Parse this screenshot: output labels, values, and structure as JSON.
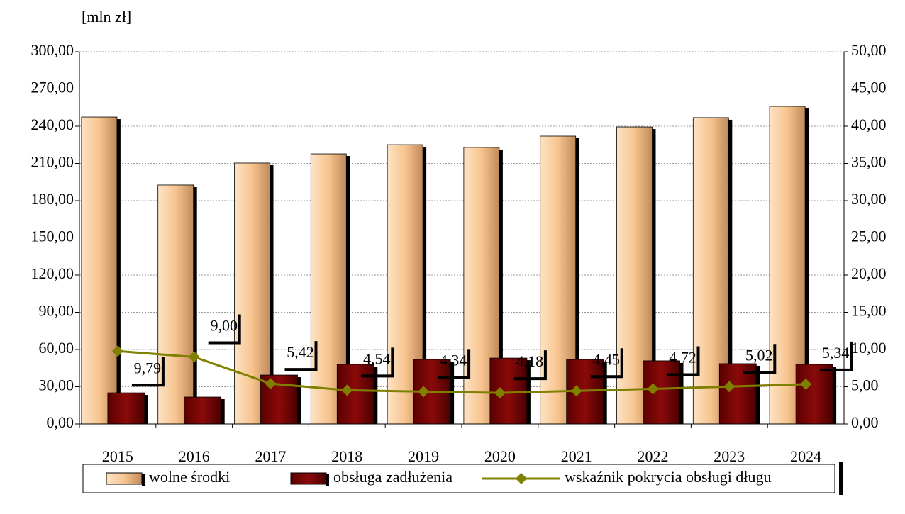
{
  "chart_data": {
    "type": "bar_line",
    "ylabel": "[mln zł]",
    "categories": [
      "2015",
      "2016",
      "2017",
      "2018",
      "2019",
      "2020",
      "2021",
      "2022",
      "2023",
      "2024"
    ],
    "series": [
      {
        "name": "wolne środki",
        "type": "bar",
        "color": "#f7c48f",
        "values": [
          247.4,
          192.6,
          210.3,
          217.7,
          225.1,
          222.9,
          232.0,
          239.4,
          246.9,
          256.0
        ]
      },
      {
        "name": "obsługa zadłużenia",
        "type": "bar",
        "color": "#7a0000",
        "values": [
          25.1,
          21.7,
          39.4,
          48.0,
          52.0,
          53.1,
          52.0,
          50.9,
          48.6,
          48.0
        ]
      },
      {
        "name": "wskaźnik pokrycia obsługi długu",
        "type": "line",
        "axis": "y2",
        "color": "#808000",
        "values": [
          9.79,
          9.0,
          5.42,
          4.54,
          4.34,
          4.18,
          4.45,
          4.72,
          5.02,
          5.34
        ],
        "value_labels": [
          "9,79",
          "9,00",
          "5,42",
          "4,54",
          "4,34",
          "4,18",
          "4,45",
          "4,72",
          "5,02",
          "5,34"
        ]
      }
    ],
    "ylim": [
      0,
      300
    ],
    "yticks": [
      {
        "value": 0,
        "label": "0,00"
      },
      {
        "value": 30,
        "label": "30,00"
      },
      {
        "value": 60,
        "label": "60,00"
      },
      {
        "value": 90,
        "label": "90,00"
      },
      {
        "value": 120,
        "label": "120,00"
      },
      {
        "value": 150,
        "label": "150,00"
      },
      {
        "value": 180,
        "label": "180,00"
      },
      {
        "value": 210,
        "label": "210,00"
      },
      {
        "value": 240,
        "label": "240,00"
      },
      {
        "value": 270,
        "label": "270,00"
      },
      {
        "value": 300,
        "label": "300,00"
      }
    ],
    "y2lim": [
      0,
      50
    ],
    "y2ticks": [
      {
        "value": 0,
        "label": "0,00"
      },
      {
        "value": 5,
        "label": "5,00"
      },
      {
        "value": 10,
        "label": "10,00"
      },
      {
        "value": 15,
        "label": "15,00"
      },
      {
        "value": 20,
        "label": "20,00"
      },
      {
        "value": 25,
        "label": "25,00"
      },
      {
        "value": 30,
        "label": "30,00"
      },
      {
        "value": 35,
        "label": "35,00"
      },
      {
        "value": 40,
        "label": "40,00"
      },
      {
        "value": 45,
        "label": "45,00"
      },
      {
        "value": 50,
        "label": "50,00"
      }
    ],
    "grid": true,
    "legend": "bottom"
  }
}
